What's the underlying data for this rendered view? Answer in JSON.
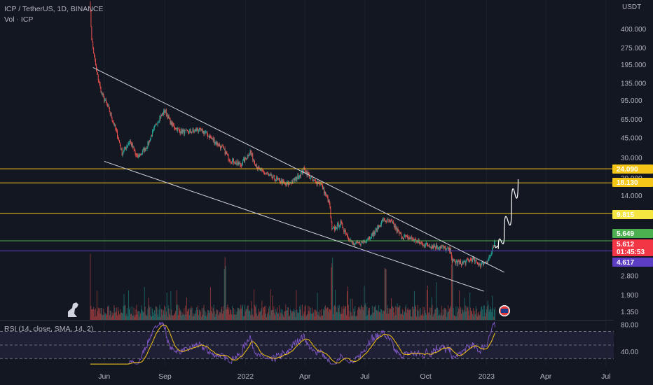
{
  "header": {
    "symbol_line": "ICP / TetherUS, 1D, BINANCE",
    "volume_line": "Vol · ICP",
    "rsi_line": "RSI (14, close, SMA, 14, 2)"
  },
  "axis": {
    "currency": "USDT",
    "price_ticks": [
      "400.000",
      "275.000",
      "195.000",
      "135.000",
      "95.000",
      "65.000",
      "45.000",
      "30.000",
      "20.000",
      "14.000",
      "2.800",
      "1.900",
      "1.350"
    ],
    "rsi_ticks": [
      "80.00",
      "40.00"
    ],
    "x_ticks": [
      "Jun",
      "Sep",
      "2022",
      "Apr",
      "Jul",
      "Oct",
      "2023",
      "Apr",
      "Jul"
    ]
  },
  "badges": [
    {
      "id": "level-24090",
      "text": "24.090",
      "bg": "#f5c518",
      "fg": "#131722"
    },
    {
      "id": "level-18130",
      "text": "18.130",
      "bg": "#f5c518",
      "fg": "#131722"
    },
    {
      "id": "level-9815",
      "text": "9.815",
      "bg": "#f5e642",
      "fg": "#131722"
    },
    {
      "id": "level-5649",
      "text": "5.649",
      "bg": "#4caf50",
      "fg": "#ffffff"
    },
    {
      "id": "last-price",
      "text": "5.612",
      "bg": "#f23645",
      "fg": "#ffffff"
    },
    {
      "id": "countdown",
      "text": "01:45:53",
      "bg": "#f23645",
      "fg": "#ffffff"
    },
    {
      "id": "level-4617",
      "text": "4.617",
      "bg": "#5b3ec4",
      "fg": "#ffffff"
    }
  ],
  "colors": {
    "background": "#131722",
    "up": "#26a69a",
    "down": "#ef5350",
    "rsi": "#7e57c2",
    "rsi_ma": "#f5c518",
    "level_yellow": "#f5c518",
    "level_green": "#4caf50",
    "level_purple": "#5b3ec4",
    "trendline": "#d1d4dc"
  },
  "chart_data": {
    "type": "candlestick",
    "scale": "log",
    "x_range": [
      "2021-05-10",
      "2023-07-15"
    ],
    "y_range": [
      1.15,
      720
    ],
    "horizontal_levels": [
      24.09,
      18.13,
      9.815,
      5.649,
      4.617
    ],
    "last_price": 5.612,
    "trendlines": [
      {
        "from": [
          "2021-05-15",
          185
        ],
        "to": [
          "2023-01-28",
          3.0
        ]
      },
      {
        "from": [
          "2021-06-01",
          28
        ],
        "to": [
          "2022-12-28",
          2.05
        ]
      }
    ],
    "projection": [
      [
        "2023-01-14",
        5.2
      ],
      [
        "2023-01-19",
        4.8
      ],
      [
        "2023-01-28",
        6.5
      ],
      [
        "2023-02-08",
        11.0
      ],
      [
        "2023-02-18",
        19.5
      ]
    ],
    "price_path": [
      [
        "2021-05-10",
        720
      ],
      [
        "2021-05-13",
        330
      ],
      [
        "2021-05-20",
        175
      ],
      [
        "2021-05-28",
        110
      ],
      [
        "2021-06-08",
        80
      ],
      [
        "2021-06-20",
        50
      ],
      [
        "2021-06-28",
        33
      ],
      [
        "2021-07-10",
        42
      ],
      [
        "2021-07-21",
        30
      ],
      [
        "2021-08-05",
        38
      ],
      [
        "2021-08-20",
        62
      ],
      [
        "2021-09-01",
        78
      ],
      [
        "2021-09-10",
        60
      ],
      [
        "2021-09-22",
        52
      ],
      [
        "2021-10-05",
        50
      ],
      [
        "2021-10-20",
        53
      ],
      [
        "2021-11-01",
        50
      ],
      [
        "2021-11-15",
        42
      ],
      [
        "2021-11-28",
        36
      ],
      [
        "2021-12-08",
        29
      ],
      [
        "2021-12-25",
        26
      ],
      [
        "2022-01-08",
        34
      ],
      [
        "2022-01-20",
        24
      ],
      [
        "2022-02-05",
        21
      ],
      [
        "2022-02-20",
        19
      ],
      [
        "2022-03-05",
        17.5
      ],
      [
        "2022-03-20",
        20
      ],
      [
        "2022-03-31",
        24
      ],
      [
        "2022-04-12",
        19
      ],
      [
        "2022-04-25",
        18
      ],
      [
        "2022-05-08",
        12
      ],
      [
        "2022-05-12",
        7
      ],
      [
        "2022-05-25",
        8
      ],
      [
        "2022-06-13",
        5.2
      ],
      [
        "2022-06-28",
        5.5
      ],
      [
        "2022-07-15",
        6.6
      ],
      [
        "2022-07-28",
        8.6
      ],
      [
        "2022-08-10",
        8.2
      ],
      [
        "2022-08-25",
        6.2
      ],
      [
        "2022-09-10",
        5.9
      ],
      [
        "2022-09-25",
        5.3
      ],
      [
        "2022-10-10",
        5.1
      ],
      [
        "2022-10-25",
        5.0
      ],
      [
        "2022-11-08",
        4.6
      ],
      [
        "2022-11-10",
        3.7
      ],
      [
        "2022-11-25",
        3.6
      ],
      [
        "2022-12-10",
        3.9
      ],
      [
        "2022-12-22",
        3.5
      ],
      [
        "2023-01-01",
        3.7
      ],
      [
        "2023-01-08",
        4.3
      ],
      [
        "2023-01-14",
        5.6
      ]
    ],
    "volume": {
      "spike_dates": [
        "2021-05-10",
        "2021-12-01",
        "2022-05-12",
        "2022-08-01",
        "2022-11-10"
      ]
    },
    "rsi": {
      "length": 14,
      "ma_length": 14,
      "levels": [
        70,
        50,
        30
      ],
      "y_range": [
        20,
        85
      ],
      "last": 76
    }
  }
}
